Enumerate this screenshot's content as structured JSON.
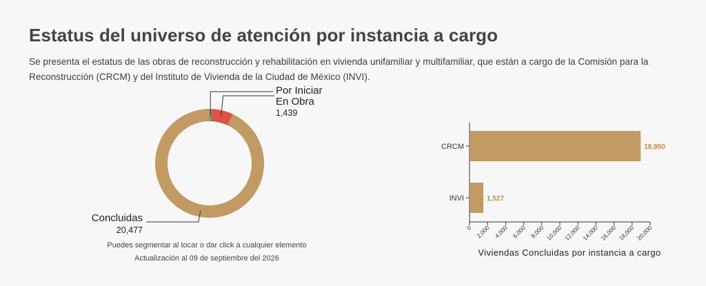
{
  "title": "Estatus del universo de atención por instancia a cargo",
  "description": "Se presenta el estatus de las obras de reconstrucción y rehabilitación en vivienda unifamiliar y multifamiliar, que están a cargo de la Comisión para la Reconstrucción (CRCM) y del Instituto de Vivienda de la Ciudad de México (INVI).",
  "footnotes": {
    "hint": "Puedes segmentar al tocar o dar click a cualquier elemento",
    "update": "Actualización al 09 de septiembre del 2026"
  },
  "colors": {
    "concluidas": "#c29a63",
    "en_obra": "#dd5346",
    "por_iniciar": "#5a9a7e",
    "bar": "#c29a63",
    "bar_label": "#b8884d"
  },
  "chart_data": [
    {
      "type": "pie",
      "variant": "donut",
      "slices": [
        {
          "label": "Por Iniciar",
          "value": 120,
          "value_label": ""
        },
        {
          "label": "En Obra",
          "value": 1439,
          "value_label": "1,439"
        },
        {
          "label": "Concluidas",
          "value": 20477,
          "value_label": "20,477"
        }
      ]
    },
    {
      "type": "bar",
      "orientation": "horizontal",
      "categories": [
        "CRCM",
        "INVI"
      ],
      "values": [
        18950,
        1527
      ],
      "value_labels": [
        "18,950",
        "1,527"
      ],
      "xlabel": "Viviendas Concluidas por instancia a cargo",
      "xlim": [
        0,
        20000
      ],
      "xticks": [
        "0",
        "2,000",
        "4,000",
        "6,000",
        "8,000",
        "10,000",
        "12,000",
        "14,000",
        "16,000",
        "18,000",
        "20,000"
      ]
    }
  ]
}
